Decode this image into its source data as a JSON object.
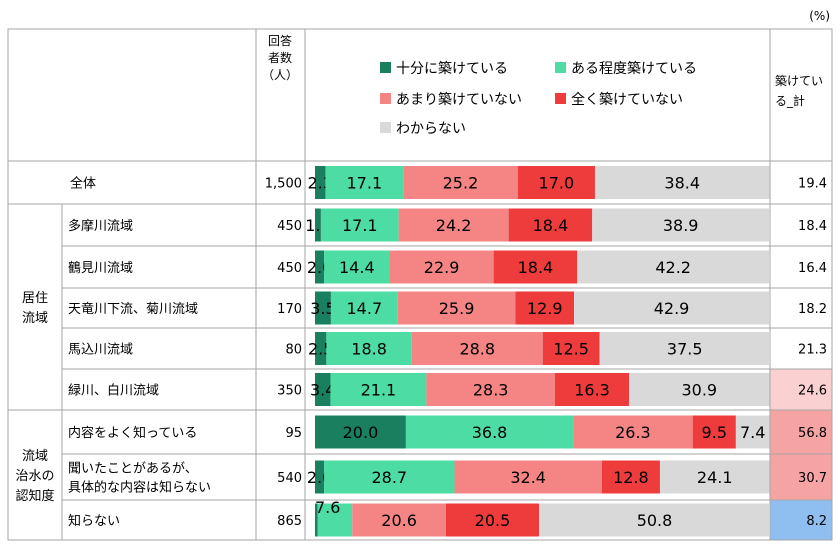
{
  "unit_note": "(%)",
  "header": {
    "n_label": [
      "回答",
      "者数",
      "（人）"
    ],
    "sum_label": [
      "築けてい",
      "る_計"
    ]
  },
  "colors": {
    "border": "#a6a6a6",
    "series": [
      "#1a7f5f",
      "#4ddca4",
      "#f58585",
      "#ee3b3b",
      "#d9d9d9"
    ],
    "highlight_pink": "#f6a3a3",
    "highlight_pink_light": "#fbd0d0",
    "highlight_blue": "#8fbff0"
  },
  "chart_data": {
    "type": "bar",
    "stacked": "horizontal-100pct",
    "legend_position": "top",
    "series": [
      {
        "name": "十分に築けている",
        "values": [
          2.3,
          1.3,
          2.0,
          3.5,
          2.5,
          3.4,
          20.0,
          2.0,
          0.6
        ]
      },
      {
        "name": "ある程度築けている",
        "values": [
          17.1,
          17.1,
          14.4,
          14.7,
          18.8,
          21.1,
          36.8,
          28.7,
          7.6
        ]
      },
      {
        "name": "あまり築けていない",
        "values": [
          25.2,
          24.2,
          22.9,
          25.9,
          28.8,
          28.3,
          26.3,
          32.4,
          20.6
        ]
      },
      {
        "name": "全く築けていない",
        "values": [
          17.0,
          18.4,
          18.4,
          12.9,
          12.5,
          16.3,
          9.5,
          12.8,
          20.5
        ]
      },
      {
        "name": "わからない",
        "values": [
          38.4,
          38.9,
          42.2,
          42.9,
          37.5,
          30.9,
          7.4,
          24.1,
          50.8
        ]
      }
    ],
    "categories": [
      "全体",
      "多摩川流域",
      "鶴見川流域",
      "天竜川下流、菊川流域",
      "馬込川流域",
      "緑川、白川流域",
      "内容をよく知っている",
      "聞いたことがあるが、具体的な内容は知らない",
      "知らない"
    ],
    "category_lines": [
      [
        "全体"
      ],
      [
        "多摩川流域"
      ],
      [
        "鶴見川流域"
      ],
      [
        "天竜川下流、菊川流域"
      ],
      [
        "馬込川流域"
      ],
      [
        "緑川、白川流域"
      ],
      [
        "内容をよく知っている"
      ],
      [
        "聞いたことがあるが、",
        "具体的な内容は知らない"
      ],
      [
        "知らない"
      ]
    ],
    "value_labels": [
      [
        "2.3",
        "17.1",
        "25.2",
        "17.0",
        "38.4"
      ],
      [
        "1.3",
        "17.1",
        "24.2",
        "18.4",
        "38.9"
      ],
      [
        "2.0",
        "14.4",
        "22.9",
        "18.4",
        "42.2"
      ],
      [
        "3.5",
        "14.7",
        "25.9",
        "12.9",
        "42.9"
      ],
      [
        "2.5",
        "18.8",
        "28.8",
        "12.5",
        "37.5"
      ],
      [
        "3.4",
        "21.1",
        "28.3",
        "16.3",
        "30.9"
      ],
      [
        "20.0",
        "36.8",
        "26.3",
        "9.5",
        "7.4"
      ],
      [
        "2.0",
        "28.7",
        "32.4",
        "12.8",
        "24.1"
      ],
      [
        "0.6",
        "7.6",
        "20.6",
        "20.5",
        "50.8"
      ]
    ],
    "n": [
      "1,500",
      "450",
      "450",
      "170",
      "80",
      "350",
      "95",
      "540",
      "865"
    ],
    "total_built": [
      "19.4",
      "18.4",
      "16.4",
      "18.2",
      "21.3",
      "24.6",
      "56.8",
      "30.7",
      "8.2"
    ],
    "total_built_highlight": [
      "none",
      "none",
      "none",
      "none",
      "none",
      "pink-light",
      "pink",
      "pink",
      "blue"
    ],
    "groups": [
      {
        "lines": [
          "居住",
          "流域"
        ],
        "first_row": 1,
        "last_row": 5
      },
      {
        "lines": [
          "流域",
          "治水の",
          "認知度"
        ],
        "first_row": 6,
        "last_row": 8
      }
    ]
  }
}
